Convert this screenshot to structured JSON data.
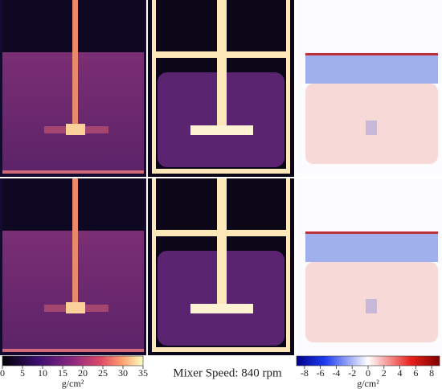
{
  "title": "Mixer Speed: 840 rpm",
  "colorbars": [
    {
      "lim": [
        0,
        35
      ],
      "ticks": [
        0,
        5,
        10,
        15,
        20,
        25,
        30,
        35
      ],
      "unit": "g/cm²"
    },
    {
      "lim": [
        -9,
        9
      ],
      "ticks": [
        -8,
        -6,
        -4,
        -2,
        0,
        2,
        4,
        6,
        8
      ],
      "unit": "g/cm²"
    }
  ]
}
